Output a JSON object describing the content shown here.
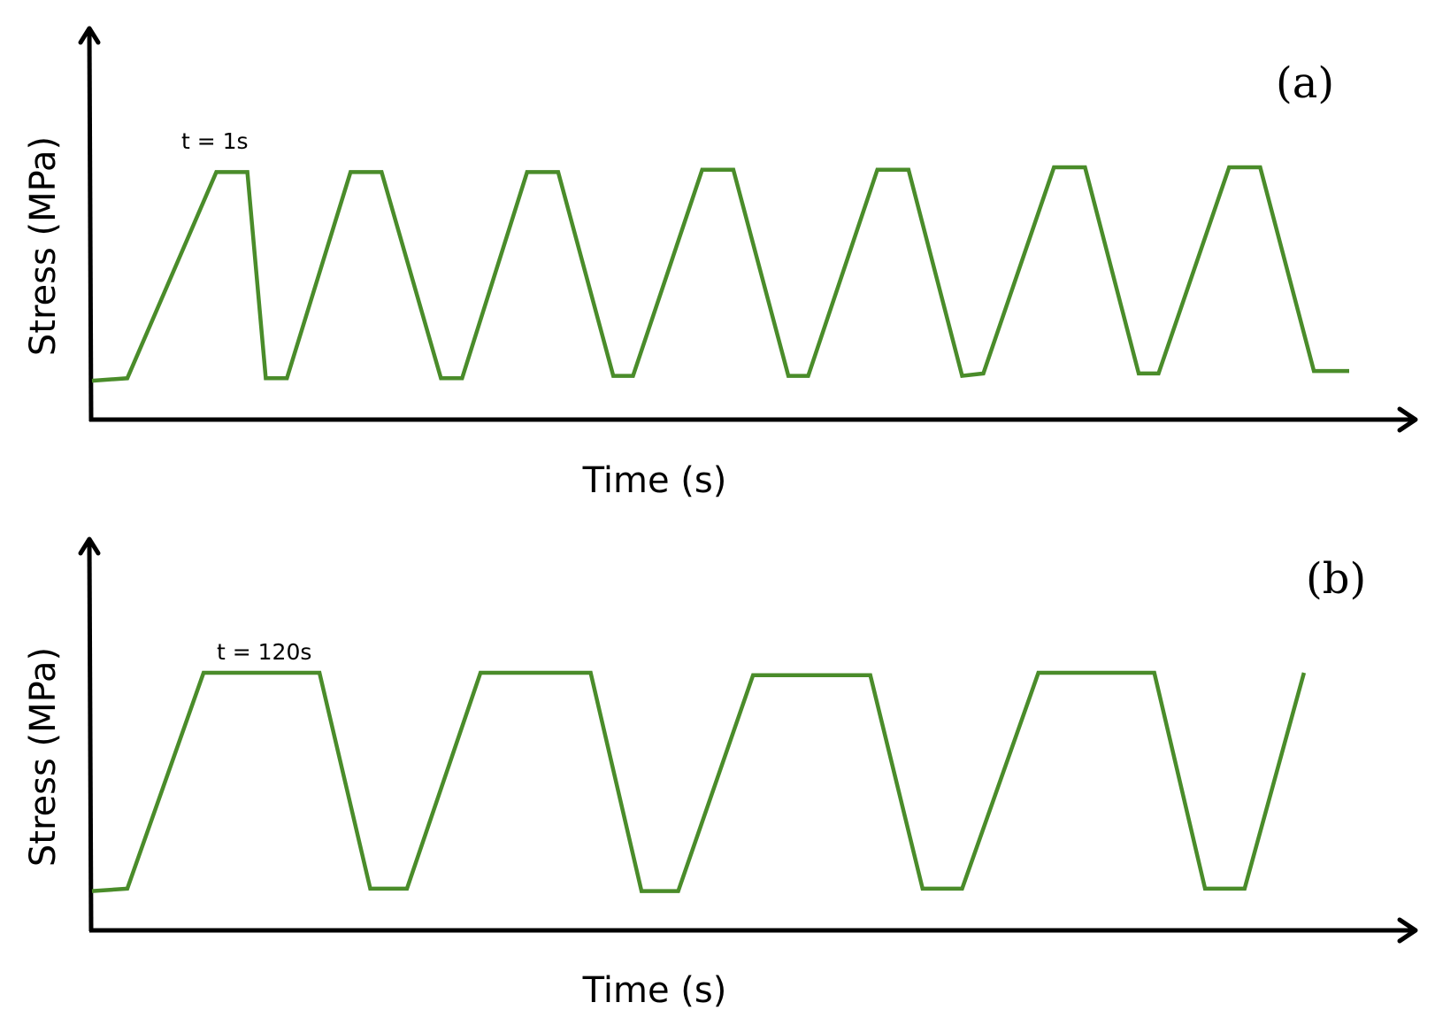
{
  "chart_data": [
    {
      "type": "line",
      "panel_label": "(a)",
      "xlabel": "Time (s)",
      "ylabel": "Stress (MPa)",
      "annotation": "t = 1s",
      "grid": false,
      "line_color": "#4a8c2a",
      "series": [
        {
          "x": [
            0,
            2.5,
            8.8,
            11,
            12.3,
            13.8,
            18.3,
            20.5,
            24.7,
            26.2,
            30.8,
            33,
            36.9,
            38.3,
            43.2,
            45.4,
            49.3,
            50.7,
            55.6,
            57.8,
            61.6,
            63.1,
            68.1,
            70.3,
            74.1,
            75.5,
            80.5,
            82.7,
            86.5,
            89
          ],
          "y": [
            0.08,
            0.09,
            0.94,
            0.94,
            0.09,
            0.09,
            0.94,
            0.94,
            0.09,
            0.09,
            0.94,
            0.94,
            0.1,
            0.1,
            0.95,
            0.95,
            0.1,
            0.1,
            0.95,
            0.95,
            0.1,
            0.11,
            0.96,
            0.96,
            0.11,
            0.11,
            0.96,
            0.96,
            0.12,
            0.12
          ]
        }
      ]
    },
    {
      "type": "line",
      "panel_label": "(b)",
      "xlabel": "Time (s)",
      "ylabel": "Stress (MPa)",
      "annotation": "t = 120s",
      "grid": false,
      "line_color": "#4a8c2a",
      "series": [
        {
          "x": [
            0,
            2.5,
            7.9,
            16.1,
            19.7,
            22.3,
            27.5,
            35.3,
            38.9,
            41.5,
            46.8,
            55.1,
            58.8,
            61.6,
            67,
            75.2,
            78.8,
            81.6,
            85.8
          ],
          "y": [
            0.08,
            0.09,
            1.0,
            1.0,
            0.09,
            0.09,
            1.0,
            1.0,
            0.08,
            0.08,
            0.99,
            0.99,
            0.09,
            0.09,
            1.0,
            1.0,
            0.09,
            0.09,
            1.0
          ]
        }
      ]
    }
  ]
}
